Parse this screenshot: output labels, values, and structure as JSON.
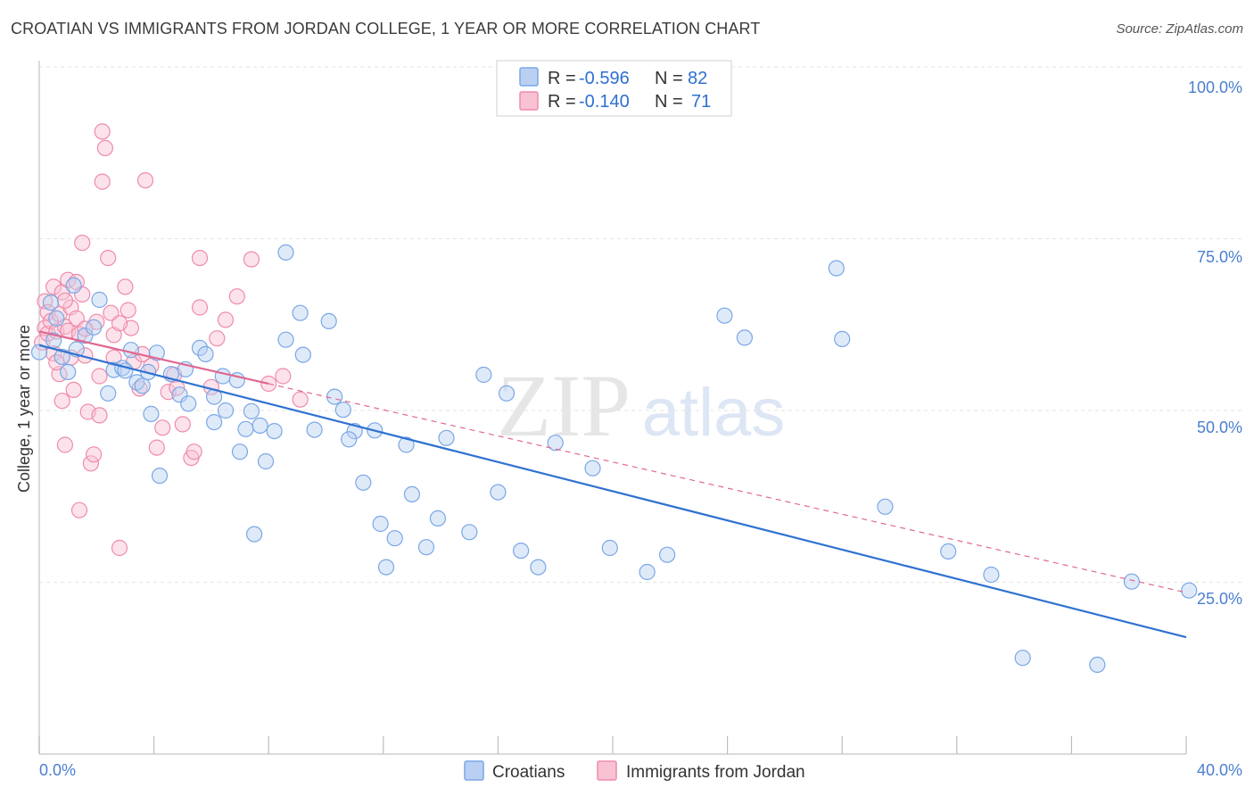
{
  "title": "CROATIAN VS IMMIGRANTS FROM JORDAN COLLEGE, 1 YEAR OR MORE CORRELATION CHART",
  "source": "Source: ZipAtlas.com",
  "watermark": {
    "zip": "ZIP",
    "atlas": "atlas"
  },
  "chart_data": {
    "type": "scatter",
    "xlabel": "",
    "ylabel": "College, 1 year or more",
    "xlim": [
      0,
      40
    ],
    "ylim": [
      0,
      100
    ],
    "x_tick_labels": [
      "0.0%",
      "40.0%"
    ],
    "y_ticks": [
      25,
      50,
      75,
      100
    ],
    "y_tick_labels": [
      "25.0%",
      "50.0%",
      "75.0%",
      "100.0%"
    ],
    "grid": true,
    "legend_position": "top-center",
    "stats": [
      {
        "r_label": "R =",
        "r_value": "-0.596",
        "n_label": "N =",
        "n_value": "82"
      },
      {
        "r_label": "R =",
        "r_value": "-0.140",
        "n_label": "N =",
        "n_value": "71"
      }
    ],
    "series": [
      {
        "name": "Croatians",
        "color": "#7aa7e6",
        "fill": "#b9d0f2",
        "line_color": "#2f72d0",
        "trend": {
          "x0": 0,
          "y0": 59.5,
          "x1": 40,
          "y1": 17.0,
          "dashed": false
        },
        "points": [
          [
            0.0,
            58.5
          ],
          [
            0.4,
            65.7
          ],
          [
            0.6,
            63.4
          ],
          [
            0.8,
            57.8
          ],
          [
            0.5,
            60.2
          ],
          [
            1.0,
            55.6
          ],
          [
            1.3,
            58.9
          ],
          [
            1.6,
            60.9
          ],
          [
            1.9,
            62.1
          ],
          [
            1.2,
            68.2
          ],
          [
            2.1,
            66.1
          ],
          [
            2.6,
            55.9
          ],
          [
            2.9,
            56.2
          ],
          [
            3.2,
            58.8
          ],
          [
            3.4,
            54.1
          ],
          [
            3.6,
            53.6
          ],
          [
            3.8,
            55.6
          ],
          [
            4.1,
            58.4
          ],
          [
            4.6,
            55.3
          ],
          [
            4.9,
            52.3
          ],
          [
            5.2,
            51.0
          ],
          [
            5.6,
            59.1
          ],
          [
            5.8,
            58.2
          ],
          [
            6.1,
            52.0
          ],
          [
            6.4,
            55.0
          ],
          [
            6.9,
            54.4
          ],
          [
            6.5,
            50.0
          ],
          [
            7.2,
            47.3
          ],
          [
            7.4,
            49.9
          ],
          [
            7.7,
            47.8
          ],
          [
            7.9,
            42.6
          ],
          [
            8.2,
            47.0
          ],
          [
            8.6,
            73.0
          ],
          [
            9.1,
            64.2
          ],
          [
            9.2,
            58.1
          ],
          [
            9.6,
            47.2
          ],
          [
            10.1,
            63.0
          ],
          [
            10.3,
            52.0
          ],
          [
            10.6,
            50.1
          ],
          [
            11.0,
            47.0
          ],
          [
            11.3,
            39.5
          ],
          [
            11.9,
            33.5
          ],
          [
            12.4,
            31.4
          ],
          [
            12.8,
            45.0
          ],
          [
            13.0,
            37.8
          ],
          [
            13.5,
            30.1
          ],
          [
            13.9,
            34.3
          ],
          [
            14.2,
            46.0
          ],
          [
            15.0,
            32.3
          ],
          [
            15.5,
            55.2
          ],
          [
            16.0,
            38.1
          ],
          [
            16.3,
            52.5
          ],
          [
            16.8,
            29.6
          ],
          [
            17.4,
            27.2
          ],
          [
            18.0,
            45.3
          ],
          [
            19.3,
            41.6
          ],
          [
            19.9,
            30.0
          ],
          [
            21.2,
            26.5
          ],
          [
            21.9,
            29.0
          ],
          [
            23.9,
            63.8
          ],
          [
            24.6,
            60.6
          ],
          [
            27.8,
            70.7
          ],
          [
            28.0,
            60.4
          ],
          [
            29.5,
            36.0
          ],
          [
            31.7,
            29.5
          ],
          [
            34.3,
            14.0
          ],
          [
            36.9,
            13.0
          ],
          [
            33.2,
            26.1
          ],
          [
            38.1,
            25.1
          ],
          [
            40.1,
            23.8
          ],
          [
            3.9,
            49.5
          ],
          [
            5.1,
            56.0
          ],
          [
            6.1,
            48.3
          ],
          [
            7.0,
            44.0
          ],
          [
            2.4,
            52.5
          ],
          [
            3.0,
            55.8
          ],
          [
            12.1,
            27.2
          ],
          [
            7.5,
            32.0
          ],
          [
            8.6,
            60.3
          ],
          [
            10.8,
            45.8
          ],
          [
            11.7,
            47.1
          ],
          [
            4.2,
            40.5
          ]
        ]
      },
      {
        "name": "Immigrants from Jordan",
        "color": "#ef8bab",
        "fill": "#f8c2d3",
        "line_color": "#e06890",
        "trend": {
          "x0": 0,
          "y0": 61.5,
          "x1": 40,
          "y1": 23.5,
          "solid_until": 8.0,
          "dashed": true
        },
        "points": [
          [
            0.1,
            59.9
          ],
          [
            0.2,
            62.0
          ],
          [
            0.2,
            65.9
          ],
          [
            0.3,
            64.3
          ],
          [
            0.3,
            61.2
          ],
          [
            0.4,
            63.0
          ],
          [
            0.5,
            68.0
          ],
          [
            0.5,
            58.3
          ],
          [
            0.6,
            61.5
          ],
          [
            0.7,
            64.0
          ],
          [
            0.7,
            55.3
          ],
          [
            0.8,
            67.2
          ],
          [
            0.8,
            51.4
          ],
          [
            0.9,
            62.2
          ],
          [
            0.9,
            45.0
          ],
          [
            1.0,
            69.0
          ],
          [
            1.0,
            61.6
          ],
          [
            1.1,
            65.0
          ],
          [
            1.1,
            57.7
          ],
          [
            1.2,
            53.0
          ],
          [
            1.3,
            68.7
          ],
          [
            1.3,
            63.4
          ],
          [
            1.4,
            61.1
          ],
          [
            1.4,
            35.5
          ],
          [
            1.5,
            74.4
          ],
          [
            1.6,
            58.0
          ],
          [
            1.7,
            49.8
          ],
          [
            1.8,
            42.3
          ],
          [
            1.9,
            43.6
          ],
          [
            2.0,
            62.9
          ],
          [
            2.1,
            55.0
          ],
          [
            2.2,
            90.6
          ],
          [
            2.2,
            83.3
          ],
          [
            2.3,
            88.2
          ],
          [
            2.4,
            72.2
          ],
          [
            2.5,
            64.2
          ],
          [
            2.6,
            61.0
          ],
          [
            2.6,
            57.7
          ],
          [
            2.8,
            30.0
          ],
          [
            3.0,
            68.0
          ],
          [
            3.1,
            64.6
          ],
          [
            3.2,
            62.0
          ],
          [
            3.3,
            57.1
          ],
          [
            3.5,
            53.2
          ],
          [
            3.7,
            83.5
          ],
          [
            3.9,
            56.5
          ],
          [
            4.1,
            44.6
          ],
          [
            4.3,
            47.5
          ],
          [
            4.5,
            52.7
          ],
          [
            4.7,
            55.2
          ],
          [
            5.0,
            48.0
          ],
          [
            5.3,
            43.1
          ],
          [
            5.4,
            44.0
          ],
          [
            5.6,
            72.2
          ],
          [
            6.0,
            53.4
          ],
          [
            6.2,
            60.5
          ],
          [
            6.5,
            63.2
          ],
          [
            6.9,
            66.6
          ],
          [
            7.4,
            72.0
          ],
          [
            8.0,
            53.9
          ],
          [
            8.5,
            55.0
          ],
          [
            9.1,
            51.6
          ],
          [
            2.8,
            62.7
          ],
          [
            1.6,
            61.9
          ],
          [
            0.9,
            66.0
          ],
          [
            3.6,
            58.2
          ],
          [
            4.8,
            53.3
          ],
          [
            2.1,
            49.3
          ],
          [
            1.5,
            66.9
          ],
          [
            0.6,
            57.0
          ],
          [
            5.6,
            65.0
          ]
        ]
      }
    ]
  }
}
